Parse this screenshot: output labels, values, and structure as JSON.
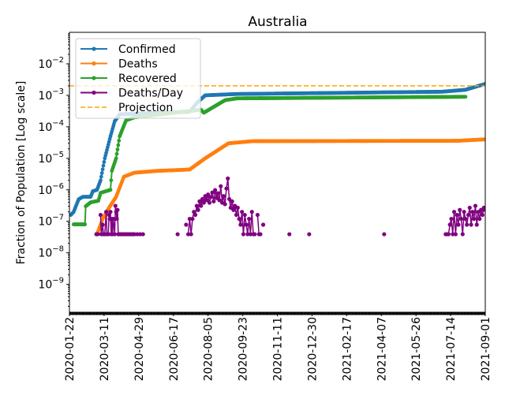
{
  "chart_data": {
    "type": "line",
    "title": "Australia",
    "xlabel": "",
    "ylabel": "Fraction of Population [Log scale]",
    "yscale": "log",
    "ylim": [
      1.3e-10,
      0.1
    ],
    "x_start_date": "2020-01-22",
    "x_range_days": [
      0,
      588
    ],
    "x_ticks": [
      {
        "day": 0,
        "label": "2020-01-22"
      },
      {
        "day": 49,
        "label": "2020-03-11"
      },
      {
        "day": 98,
        "label": "2020-04-29"
      },
      {
        "day": 147,
        "label": "2020-06-17"
      },
      {
        "day": 196,
        "label": "2020-08-05"
      },
      {
        "day": 245,
        "label": "2020-09-23"
      },
      {
        "day": 294,
        "label": "2020-11-11"
      },
      {
        "day": 343,
        "label": "2020-12-30"
      },
      {
        "day": 392,
        "label": "2021-02-17"
      },
      {
        "day": 441,
        "label": "2021-04-07"
      },
      {
        "day": 490,
        "label": "2021-05-26"
      },
      {
        "day": 539,
        "label": "2021-07-14"
      },
      {
        "day": 588,
        "label": "2021-09-01"
      }
    ],
    "y_ticks": [
      {
        "value": 1e-09,
        "base": "10",
        "exp": "−9"
      },
      {
        "value": 1e-08,
        "base": "10",
        "exp": "−8"
      },
      {
        "value": 1e-07,
        "base": "10",
        "exp": "−7"
      },
      {
        "value": 1e-06,
        "base": "10",
        "exp": "−6"
      },
      {
        "value": 1e-05,
        "base": "10",
        "exp": "−5"
      },
      {
        "value": 0.0001,
        "base": "10",
        "exp": "−4"
      },
      {
        "value": 0.001,
        "base": "10",
        "exp": "−3"
      },
      {
        "value": 0.01,
        "base": "10",
        "exp": "−2"
      }
    ],
    "legend_position": "top-left",
    "series": [
      {
        "name": "Confirmed",
        "color": "#1f77b4",
        "style": "line-marker",
        "mode": "cumulative",
        "points": [
          [
            2,
            1.6e-07
          ],
          [
            6,
            2e-07
          ],
          [
            13,
            5e-07
          ],
          [
            19,
            6e-07
          ],
          [
            30,
            6e-07
          ],
          [
            33,
            9e-07
          ],
          [
            39,
            1e-06
          ],
          [
            44,
            2e-06
          ],
          [
            50,
            1e-05
          ],
          [
            58,
            5e-05
          ],
          [
            64,
            0.00015
          ],
          [
            71,
            0.00025
          ],
          [
            170,
            0.0003
          ],
          [
            181,
            0.0006
          ],
          [
            192,
            0.001
          ],
          [
            237,
            0.0011
          ],
          [
            527,
            0.0013
          ],
          [
            560,
            0.0015
          ],
          [
            588,
            0.0023
          ]
        ]
      },
      {
        "name": "Deaths",
        "color": "#ff7f0e",
        "style": "line-marker",
        "mode": "cumulative",
        "points": [
          [
            39,
            3.9e-08
          ],
          [
            44,
            7.8e-08
          ],
          [
            47,
            1.2e-07
          ],
          [
            55,
            2.5e-07
          ],
          [
            61,
            4e-07
          ],
          [
            66,
            6e-07
          ],
          [
            77,
            2.6e-06
          ],
          [
            92,
            3.5e-06
          ],
          [
            125,
            4e-06
          ],
          [
            170,
            4.4e-06
          ],
          [
            192,
            1e-05
          ],
          [
            225,
            3e-05
          ],
          [
            259,
            3.5e-05
          ],
          [
            549,
            3.6e-05
          ],
          [
            588,
            4e-05
          ]
        ]
      },
      {
        "name": "Recovered",
        "color": "#2ca02c",
        "style": "line-marker",
        "mode": "cumulative",
        "points": [
          [
            6,
            8e-08
          ],
          [
            22,
            8e-08
          ],
          [
            23,
            3e-07
          ],
          [
            30,
            4e-07
          ],
          [
            41,
            4.5e-07
          ],
          [
            44,
            8e-07
          ],
          [
            58,
            1e-06
          ],
          [
            60,
            4e-06
          ],
          [
            66,
            1e-05
          ],
          [
            71,
            5e-05
          ],
          [
            80,
            0.00016
          ],
          [
            92,
            0.0002
          ],
          [
            186,
            0.00035
          ],
          [
            190,
            0.00028
          ],
          [
            209,
            0.0005
          ],
          [
            220,
            0.0007
          ],
          [
            237,
            0.0008
          ],
          [
            560,
            0.0009
          ]
        ]
      },
      {
        "name": "Deaths/Day",
        "color": "#800080",
        "style": "line-marker",
        "mode": "daily",
        "points": [
          [
            38,
            3.9e-08
          ],
          [
            40,
            3.9e-08
          ],
          [
            44,
            1.6e-07
          ],
          [
            45,
            3.9e-08
          ],
          [
            47,
            7.8e-08
          ],
          [
            48,
            3.9e-08
          ],
          [
            50,
            3.9e-08
          ],
          [
            52,
            2e-07
          ],
          [
            53,
            3.9e-08
          ],
          [
            55,
            3.9e-08
          ],
          [
            56,
            1.6e-07
          ],
          [
            57,
            1.2e-07
          ],
          [
            58,
            2e-07
          ],
          [
            59,
            3.9e-08
          ],
          [
            60,
            1.2e-07
          ],
          [
            61,
            3.9e-08
          ],
          [
            62,
            1.2e-07
          ],
          [
            64,
            3.9e-08
          ],
          [
            65,
            3.1e-07
          ],
          [
            66,
            2e-07
          ],
          [
            67,
            1.2e-07
          ],
          [
            68,
            2.3e-07
          ],
          [
            69,
            3.9e-08
          ],
          [
            70,
            3.9e-08
          ],
          [
            72,
            3.9e-08
          ],
          [
            74,
            3.9e-08
          ],
          [
            76,
            3.9e-08
          ],
          [
            78,
            3.9e-08
          ],
          [
            80,
            3.9e-08
          ],
          [
            82,
            3.9e-08
          ],
          [
            84,
            3.9e-08
          ],
          [
            86,
            3.9e-08
          ],
          [
            88,
            3.9e-08
          ],
          [
            90,
            3.9e-08
          ],
          [
            92,
            3.9e-08
          ],
          [
            96,
            3.9e-08
          ],
          [
            100,
            3.9e-08
          ],
          [
            104,
            3.9e-08
          ],
          [
            153,
            3.9e-08
          ],
          [
            165,
            7.8e-08
          ],
          [
            168,
            3.9e-08
          ],
          [
            170,
            1.2e-07
          ],
          [
            172,
            3.9e-08
          ],
          [
            174,
            1.2e-07
          ],
          [
            176,
            2e-07
          ],
          [
            178,
            1.6e-07
          ],
          [
            180,
            3.1e-07
          ],
          [
            182,
            2.3e-07
          ],
          [
            184,
            4.3e-07
          ],
          [
            186,
            3.1e-07
          ],
          [
            188,
            5.1e-07
          ],
          [
            190,
            3.9e-07
          ],
          [
            192,
            6.3e-07
          ],
          [
            194,
            4.7e-07
          ],
          [
            196,
            7.1e-07
          ],
          [
            198,
            3.9e-07
          ],
          [
            200,
            5.9e-07
          ],
          [
            202,
            8.2e-07
          ],
          [
            204,
            4.3e-07
          ],
          [
            206,
            9.8e-07
          ],
          [
            208,
            5.5e-07
          ],
          [
            210,
            7.8e-07
          ],
          [
            212,
            4.7e-07
          ],
          [
            214,
            1.3e-06
          ],
          [
            216,
            3.9e-07
          ],
          [
            218,
            6.3e-07
          ],
          [
            220,
            3.5e-07
          ],
          [
            222,
            1.1e-06
          ],
          [
            224,
            2.3e-06
          ],
          [
            226,
            5.1e-07
          ],
          [
            228,
            2.7e-07
          ],
          [
            230,
            4.3e-07
          ],
          [
            232,
            2.3e-07
          ],
          [
            234,
            3.1e-07
          ],
          [
            236,
            1.6e-07
          ],
          [
            238,
            2.7e-07
          ],
          [
            240,
            1.2e-07
          ],
          [
            242,
            7.8e-08
          ],
          [
            244,
            2e-07
          ],
          [
            246,
            3.9e-08
          ],
          [
            248,
            1.6e-07
          ],
          [
            250,
            7.8e-08
          ],
          [
            252,
            3.9e-08
          ],
          [
            254,
            1.2e-07
          ],
          [
            256,
            3.9e-08
          ],
          [
            258,
            2e-07
          ],
          [
            260,
            3.9e-08
          ],
          [
            262,
            3.9e-08
          ],
          [
            266,
            1.6e-07
          ],
          [
            268,
            3.9e-08
          ],
          [
            270,
            3.9e-08
          ],
          [
            274,
            7.8e-08
          ],
          [
            311,
            3.9e-08
          ],
          [
            339,
            3.9e-08
          ],
          [
            445,
            3.9e-08
          ],
          [
            532,
            3.9e-08
          ],
          [
            534,
            3.9e-08
          ],
          [
            536,
            3.9e-08
          ],
          [
            538,
            7.8e-08
          ],
          [
            540,
            1.2e-07
          ],
          [
            542,
            3.9e-08
          ],
          [
            544,
            2e-07
          ],
          [
            546,
            3.9e-08
          ],
          [
            548,
            1.6e-07
          ],
          [
            550,
            7.8e-08
          ],
          [
            552,
            2.3e-07
          ],
          [
            554,
            1.2e-07
          ],
          [
            556,
            3.9e-08
          ],
          [
            558,
            2e-07
          ],
          [
            560,
            1.2e-07
          ],
          [
            562,
            7.8e-08
          ],
          [
            564,
            1.6e-07
          ],
          [
            566,
            2.7e-07
          ],
          [
            568,
            7.8e-08
          ],
          [
            570,
            2e-07
          ],
          [
            572,
            1.2e-07
          ],
          [
            574,
            3.1e-07
          ],
          [
            576,
            7.8e-08
          ],
          [
            578,
            2e-07
          ],
          [
            580,
            1.2e-07
          ],
          [
            582,
            2.3e-07
          ],
          [
            584,
            1.6e-07
          ],
          [
            586,
            2.7e-07
          ],
          [
            588,
            2.3e-07
          ]
        ]
      },
      {
        "name": "Projection",
        "color": "#ffa500",
        "style": "dashed",
        "mode": "constant",
        "value": 0.002
      }
    ]
  }
}
